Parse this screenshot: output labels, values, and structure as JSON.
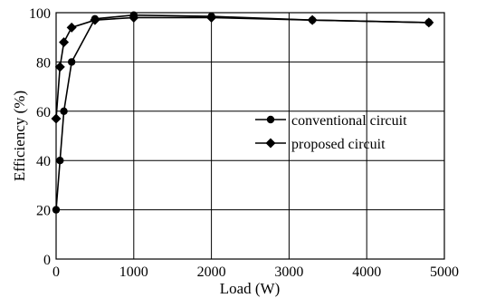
{
  "chart_data": {
    "type": "line",
    "xlabel": "Load (W)",
    "ylabel": "Efficiency (%)",
    "xlim": [
      0,
      5000
    ],
    "ylim": [
      0,
      100
    ],
    "xticks": [
      0,
      1000,
      2000,
      3000,
      4000,
      5000
    ],
    "yticks": [
      0,
      20,
      40,
      60,
      80,
      100
    ],
    "grid": true,
    "legend_position": "center-right",
    "series": [
      {
        "name": "conventional circuit",
        "marker": "circle",
        "color": "#000000",
        "x": [
          0,
          50,
          100,
          200,
          500,
          1000,
          2000,
          3300,
          4800
        ],
        "y": [
          20,
          40,
          60,
          80,
          97.5,
          99,
          98.5,
          97,
          96
        ]
      },
      {
        "name": "proposed circuit",
        "marker": "diamond",
        "color": "#000000",
        "x": [
          0,
          50,
          100,
          200,
          500,
          1000,
          2000,
          3300,
          4800
        ],
        "y": [
          57,
          78,
          88,
          94,
          97,
          98,
          98,
          97,
          96
        ]
      }
    ]
  }
}
